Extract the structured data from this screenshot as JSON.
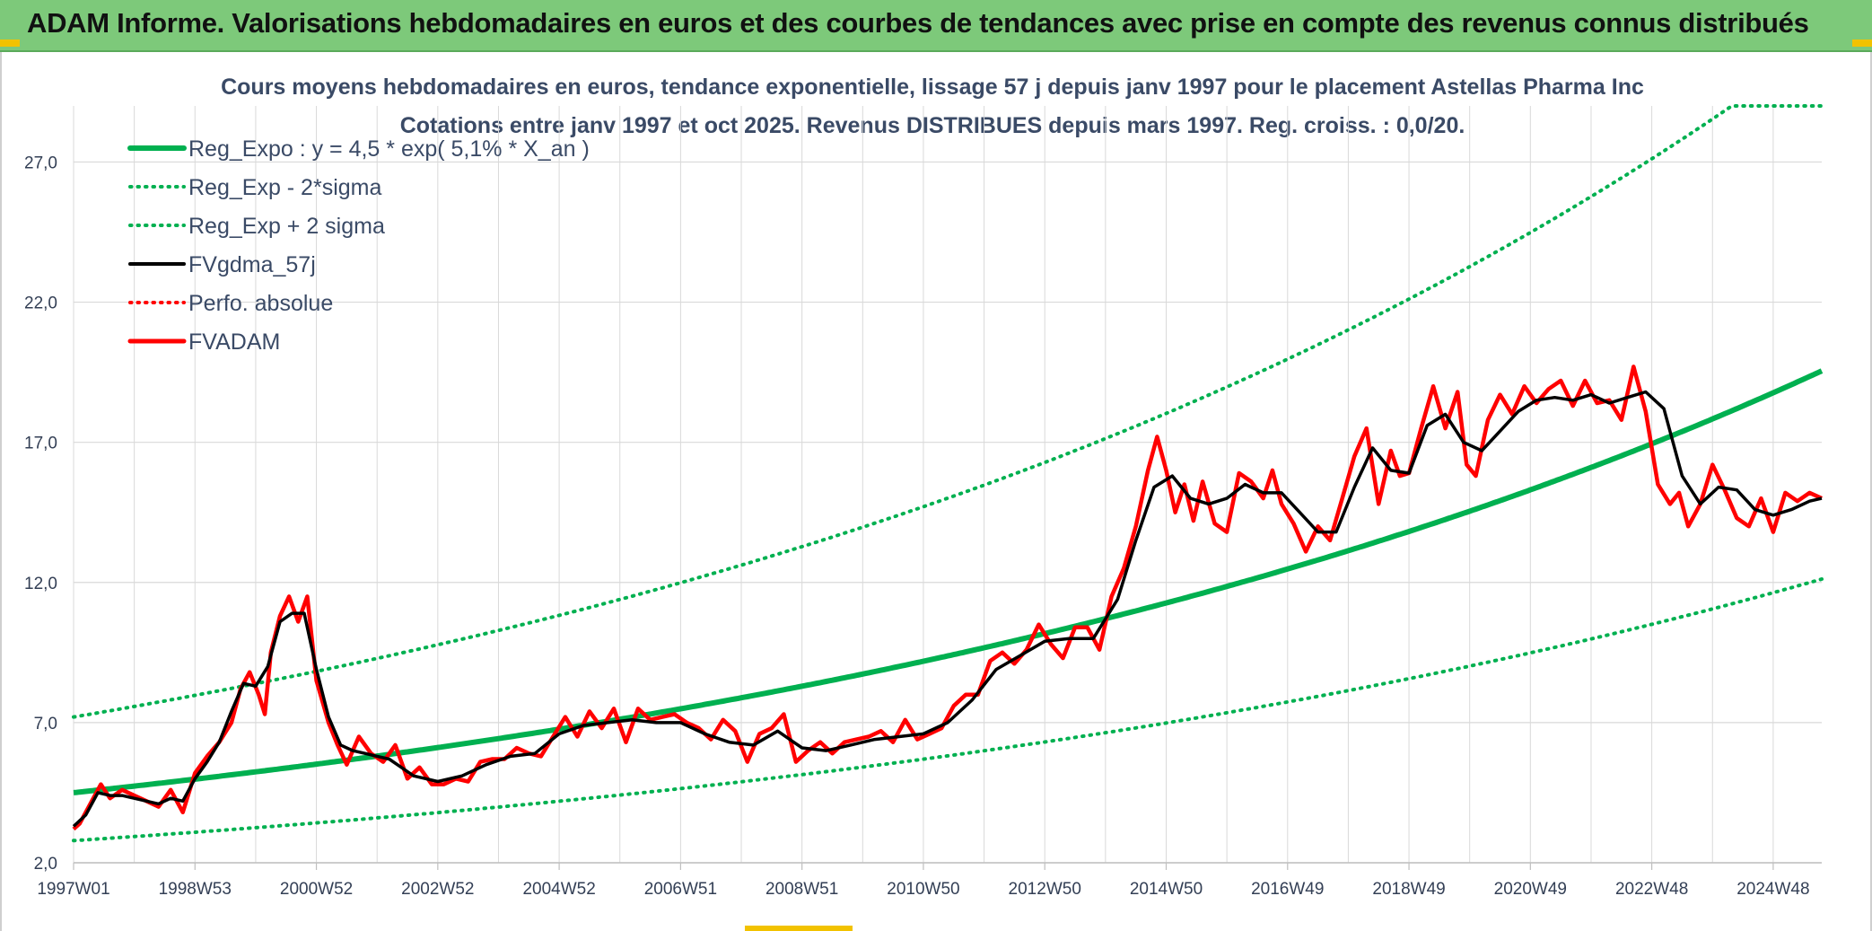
{
  "banner": {
    "title": "ADAM Informe. Valorisations hebdomadaires en euros et des courbes de tendances avec prise en compte des revenus connus distribués"
  },
  "colors": {
    "banner_bg": "#7dc97a",
    "trend": "#00b050",
    "fvgdma": "#000000",
    "fvadam": "#ff0000",
    "perfo": "#ff0000",
    "grid": "#d9d9d9"
  },
  "chart_data": {
    "type": "line",
    "title": "Cours moyens hebdomadaires en euros, tendance exponentielle, lissage 57 j depuis janv 1997 pour le placement Astellas Pharma Inc",
    "subtitle": "Cotations entre janv 1997 et oct 2025. Revenus DISTRIBUES depuis mars 1997. Reg. croiss. : 0,0/20.",
    "xlabel": "",
    "ylabel": "",
    "xlim": [
      1997.0,
      2025.8
    ],
    "ylim": [
      2.0,
      29.0
    ],
    "grid": true,
    "legend_position": "top-left",
    "y_ticks": [
      "2,0",
      "7,0",
      "12,0",
      "17,0",
      "22,0",
      "27,0"
    ],
    "y_tick_values": [
      2,
      7,
      12,
      17,
      22,
      27
    ],
    "x_ticks": [
      "1997W01",
      "1998W53",
      "2000W52",
      "2002W52",
      "2004W52",
      "2006W51",
      "2008W51",
      "2010W50",
      "2012W50",
      "2014W50",
      "2016W49",
      "2018W49",
      "2020W49",
      "2022W48",
      "2024W48"
    ],
    "x_tick_values": [
      1997.0,
      1999.0,
      2001.0,
      2003.0,
      2005.0,
      2007.0,
      2009.0,
      2011.0,
      2013.0,
      2015.0,
      2017.0,
      2019.0,
      2021.0,
      2023.0,
      2025.0
    ],
    "legend": [
      {
        "label": "Reg_Expo : y = 4,5 * exp( 5,1% *  X_an )",
        "key": "trend",
        "style": "solid"
      },
      {
        "label": "Reg_Exp - 2*sigma",
        "key": "trend_low",
        "style": "dotted"
      },
      {
        "label": "Reg_Exp + 2 sigma",
        "key": "trend_high",
        "style": "dotted"
      },
      {
        "label": "FVgdma_57j",
        "key": "fvgdma",
        "style": "solid"
      },
      {
        "label": "Perfo. absolue",
        "key": "perfo",
        "style": "dotted"
      },
      {
        "label": "FVADAM",
        "key": "fvadam",
        "style": "solid"
      }
    ],
    "trend_formula": {
      "a": 4.5,
      "b": 0.051,
      "x0": 1997.0
    },
    "band_factors": {
      "low": 0.62,
      "high": 1.6
    },
    "upper_band_cap": 29.0,
    "series": [
      {
        "key": "fvadam",
        "x": [
          1997.0,
          1997.1,
          1997.25,
          1997.45,
          1997.6,
          1997.8,
          1998.0,
          1998.2,
          1998.4,
          1998.6,
          1998.8,
          1999.0,
          1999.2,
          1999.4,
          1999.6,
          1999.75,
          1999.9,
          2000.05,
          2000.15,
          2000.25,
          2000.4,
          2000.55,
          2000.7,
          2000.85,
          2001.0,
          2001.2,
          2001.35,
          2001.5,
          2001.7,
          2001.9,
          2002.1,
          2002.3,
          2002.5,
          2002.7,
          2002.9,
          2003.1,
          2003.3,
          2003.5,
          2003.7,
          2003.9,
          2004.1,
          2004.3,
          2004.5,
          2004.7,
          2004.9,
          2005.1,
          2005.3,
          2005.5,
          2005.7,
          2005.9,
          2006.1,
          2006.3,
          2006.5,
          2006.7,
          2006.9,
          2007.1,
          2007.3,
          2007.5,
          2007.7,
          2007.9,
          2008.1,
          2008.3,
          2008.5,
          2008.7,
          2008.9,
          2009.1,
          2009.3,
          2009.5,
          2009.7,
          2009.9,
          2010.1,
          2010.3,
          2010.5,
          2010.7,
          2010.9,
          2011.1,
          2011.3,
          2011.5,
          2011.7,
          2011.9,
          2012.1,
          2012.3,
          2012.5,
          2012.7,
          2012.9,
          2013.1,
          2013.3,
          2013.5,
          2013.7,
          2013.9,
          2014.1,
          2014.3,
          2014.5,
          2014.7,
          2014.85,
          2015.0,
          2015.15,
          2015.3,
          2015.45,
          2015.6,
          2015.8,
          2016.0,
          2016.2,
          2016.4,
          2016.6,
          2016.75,
          2016.9,
          2017.1,
          2017.3,
          2017.5,
          2017.7,
          2017.9,
          2018.1,
          2018.3,
          2018.5,
          2018.7,
          2018.85,
          2019.0,
          2019.2,
          2019.4,
          2019.6,
          2019.8,
          2019.95,
          2020.1,
          2020.3,
          2020.5,
          2020.7,
          2020.9,
          2021.1,
          2021.3,
          2021.5,
          2021.7,
          2021.9,
          2022.1,
          2022.3,
          2022.5,
          2022.7,
          2022.9,
          2023.1,
          2023.3,
          2023.45,
          2023.6,
          2023.8,
          2024.0,
          2024.2,
          2024.4,
          2024.6,
          2024.8,
          2025.0,
          2025.2,
          2025.4,
          2025.6,
          2025.8
        ],
        "values": [
          3.2,
          3.4,
          4.0,
          4.8,
          4.3,
          4.6,
          4.4,
          4.2,
          4.0,
          4.6,
          3.8,
          5.2,
          5.8,
          6.3,
          7.0,
          8.2,
          8.8,
          8.0,
          7.3,
          9.5,
          10.8,
          11.5,
          10.6,
          11.5,
          8.5,
          7.0,
          6.2,
          5.5,
          6.5,
          5.9,
          5.6,
          6.2,
          5.0,
          5.4,
          4.8,
          4.8,
          5.0,
          4.9,
          5.6,
          5.7,
          5.7,
          6.1,
          5.9,
          5.8,
          6.5,
          7.2,
          6.5,
          7.4,
          6.8,
          7.5,
          6.3,
          7.5,
          7.1,
          7.2,
          7.3,
          7.0,
          6.8,
          6.4,
          7.1,
          6.7,
          5.6,
          6.6,
          6.8,
          7.3,
          5.6,
          6.0,
          6.3,
          5.9,
          6.3,
          6.4,
          6.5,
          6.7,
          6.3,
          7.1,
          6.4,
          6.6,
          6.8,
          7.6,
          8.0,
          8.0,
          9.2,
          9.5,
          9.1,
          9.6,
          10.5,
          9.8,
          9.3,
          10.4,
          10.4,
          9.6,
          11.5,
          12.5,
          14.0,
          16.0,
          17.2,
          16.0,
          14.5,
          15.5,
          14.2,
          15.6,
          14.1,
          13.8,
          15.9,
          15.6,
          15.0,
          16.0,
          14.8,
          14.1,
          13.1,
          14.0,
          13.5,
          15.0,
          16.5,
          17.5,
          14.8,
          16.7,
          15.8,
          15.9,
          17.5,
          19.0,
          17.5,
          18.8,
          16.2,
          15.8,
          17.8,
          18.7,
          18.0,
          19.0,
          18.4,
          18.9,
          19.2,
          18.3,
          19.2,
          18.4,
          18.5,
          17.8,
          19.7,
          18.1,
          15.5,
          14.8,
          15.2,
          14.0,
          14.8,
          16.2,
          15.3,
          14.3,
          14.0,
          15.0,
          13.8,
          15.2,
          14.9,
          15.2,
          15.0
        ]
      },
      {
        "key": "fvgdma",
        "x": [
          1997.0,
          1997.2,
          1997.4,
          1997.6,
          1997.8,
          1998.0,
          1998.2,
          1998.4,
          1998.6,
          1998.8,
          1999.0,
          1999.2,
          1999.4,
          1999.6,
          1999.8,
          2000.0,
          2000.2,
          2000.4,
          2000.6,
          2000.8,
          2001.0,
          2001.2,
          2001.4,
          2001.6,
          2001.8,
          2002.0,
          2002.2,
          2002.4,
          2002.6,
          2002.8,
          2003.0,
          2003.4,
          2003.8,
          2004.2,
          2004.6,
          2005.0,
          2005.4,
          2005.8,
          2006.2,
          2006.6,
          2007.0,
          2007.4,
          2007.8,
          2008.2,
          2008.6,
          2009.0,
          2009.4,
          2009.8,
          2010.2,
          2010.6,
          2011.0,
          2011.4,
          2011.8,
          2012.2,
          2012.6,
          2013.0,
          2013.4,
          2013.8,
          2014.2,
          2014.5,
          2014.8,
          2015.1,
          2015.4,
          2015.7,
          2016.0,
          2016.3,
          2016.6,
          2016.9,
          2017.2,
          2017.5,
          2017.8,
          2018.1,
          2018.4,
          2018.7,
          2019.0,
          2019.3,
          2019.6,
          2019.9,
          2020.2,
          2020.5,
          2020.8,
          2021.1,
          2021.4,
          2021.7,
          2022.0,
          2022.3,
          2022.6,
          2022.9,
          2023.2,
          2023.5,
          2023.8,
          2024.1,
          2024.4,
          2024.7,
          2025.0,
          2025.3,
          2025.6,
          2025.8
        ],
        "values": [
          3.3,
          3.7,
          4.5,
          4.4,
          4.4,
          4.3,
          4.2,
          4.1,
          4.3,
          4.2,
          5.0,
          5.6,
          6.3,
          7.4,
          8.4,
          8.3,
          9.0,
          10.6,
          10.9,
          10.9,
          8.9,
          7.2,
          6.2,
          6.0,
          5.9,
          5.8,
          5.7,
          5.4,
          5.1,
          5.0,
          4.9,
          5.1,
          5.5,
          5.8,
          5.9,
          6.6,
          6.9,
          7.0,
          7.1,
          7.0,
          7.0,
          6.6,
          6.3,
          6.2,
          6.7,
          6.1,
          6.0,
          6.2,
          6.4,
          6.5,
          6.6,
          7.0,
          7.8,
          8.9,
          9.4,
          9.9,
          10.0,
          10.0,
          11.4,
          13.5,
          15.4,
          15.8,
          15.0,
          14.8,
          15.0,
          15.5,
          15.2,
          15.2,
          14.5,
          13.8,
          13.8,
          15.4,
          16.8,
          16.0,
          15.9,
          17.6,
          18.0,
          17.0,
          16.7,
          17.4,
          18.1,
          18.5,
          18.6,
          18.5,
          18.7,
          18.4,
          18.6,
          18.8,
          18.2,
          15.8,
          14.8,
          15.4,
          15.3,
          14.6,
          14.4,
          14.6,
          14.9,
          15.0
        ]
      }
    ]
  }
}
